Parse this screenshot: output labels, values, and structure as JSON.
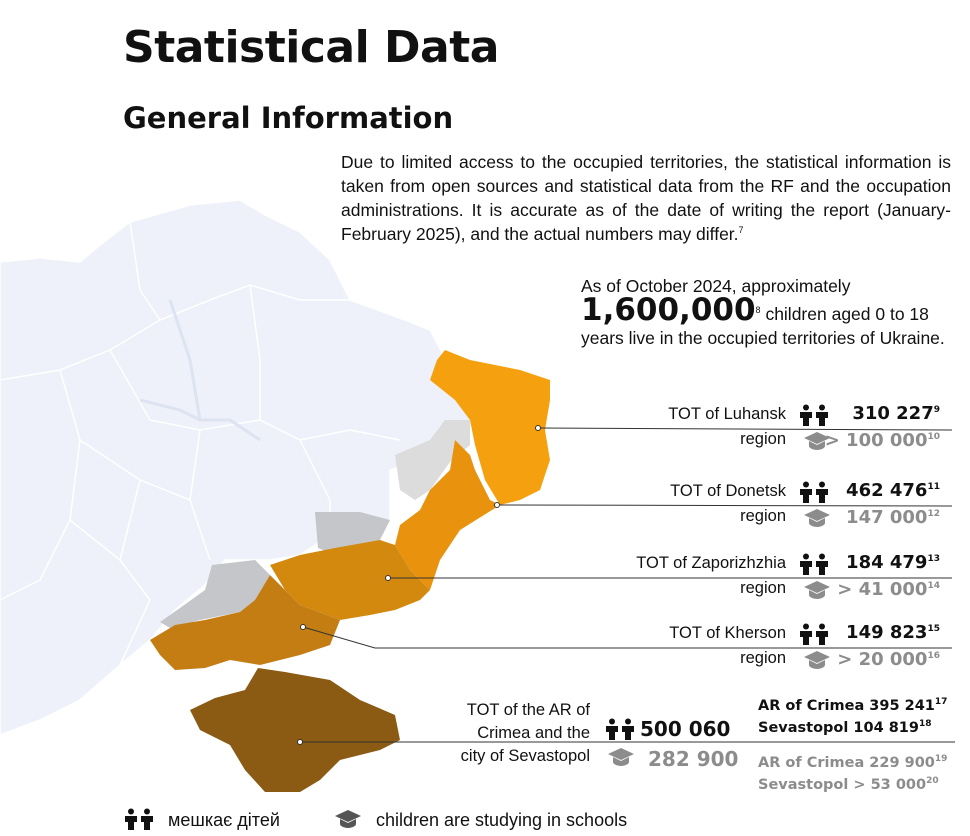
{
  "title": "Statistical Data",
  "subtitle": "General Information",
  "intro": {
    "text": "Due to limited access to the occupied territories, the statistical information is taken from open sources and statistical data from the RF and the occupation administrations. It is accurate as of the date of writing the report (January-February 2025), and the actual numbers may differ.",
    "footnote": "7"
  },
  "headline": {
    "prefix": "As of October 2024, approximately",
    "number": "1,600,000",
    "footnote": "8",
    "suffix": "children aged 0 to 18 years live in the occupied territories of Ukraine."
  },
  "regions": [
    {
      "name_line1": "TOT of Luhansk",
      "name_line2": "region",
      "children": "310 227",
      "children_note": "9",
      "students": "> 100 000",
      "students_note": "10",
      "color": "#f5a00f"
    },
    {
      "name_line1": "TOT of Donetsk",
      "name_line2": "region",
      "children": "462 476",
      "children_note": "11",
      "students": "147 000",
      "students_note": "12",
      "color": "#e9920d"
    },
    {
      "name_line1": "TOT of Zaporizhzhia",
      "name_line2": "region",
      "children": "184 479",
      "children_note": "13",
      "students": "> 41 000",
      "students_note": "14",
      "color": "#d3880e"
    },
    {
      "name_line1": "TOT of Kherson",
      "name_line2": "region",
      "children": "149 823",
      "children_note": "15",
      "students": "> 20 000",
      "students_note": "16",
      "color": "#c37d12"
    }
  ],
  "crimea": {
    "name_line1": "TOT of the AR of",
    "name_line2": "Crimea and the",
    "name_line3": "city of Sevastopol",
    "children": "500 060",
    "students": "282 900",
    "children_breakdown": [
      {
        "text": "AR of Crimea 395 241",
        "note": "17"
      },
      {
        "text": "Sevastopol 104 819",
        "note": "18"
      }
    ],
    "students_breakdown": [
      {
        "text": "AR of Crimea 229 900",
        "note": "19"
      },
      {
        "text": "Sevastopol > 53 000",
        "note": "20"
      }
    ],
    "color": "#8b5a13"
  },
  "legend": {
    "children_label": "мешкає дітей",
    "students_label": "children are studying in schools"
  },
  "icons": {
    "children": "children-icon",
    "students": "graduation-cap-icon"
  }
}
